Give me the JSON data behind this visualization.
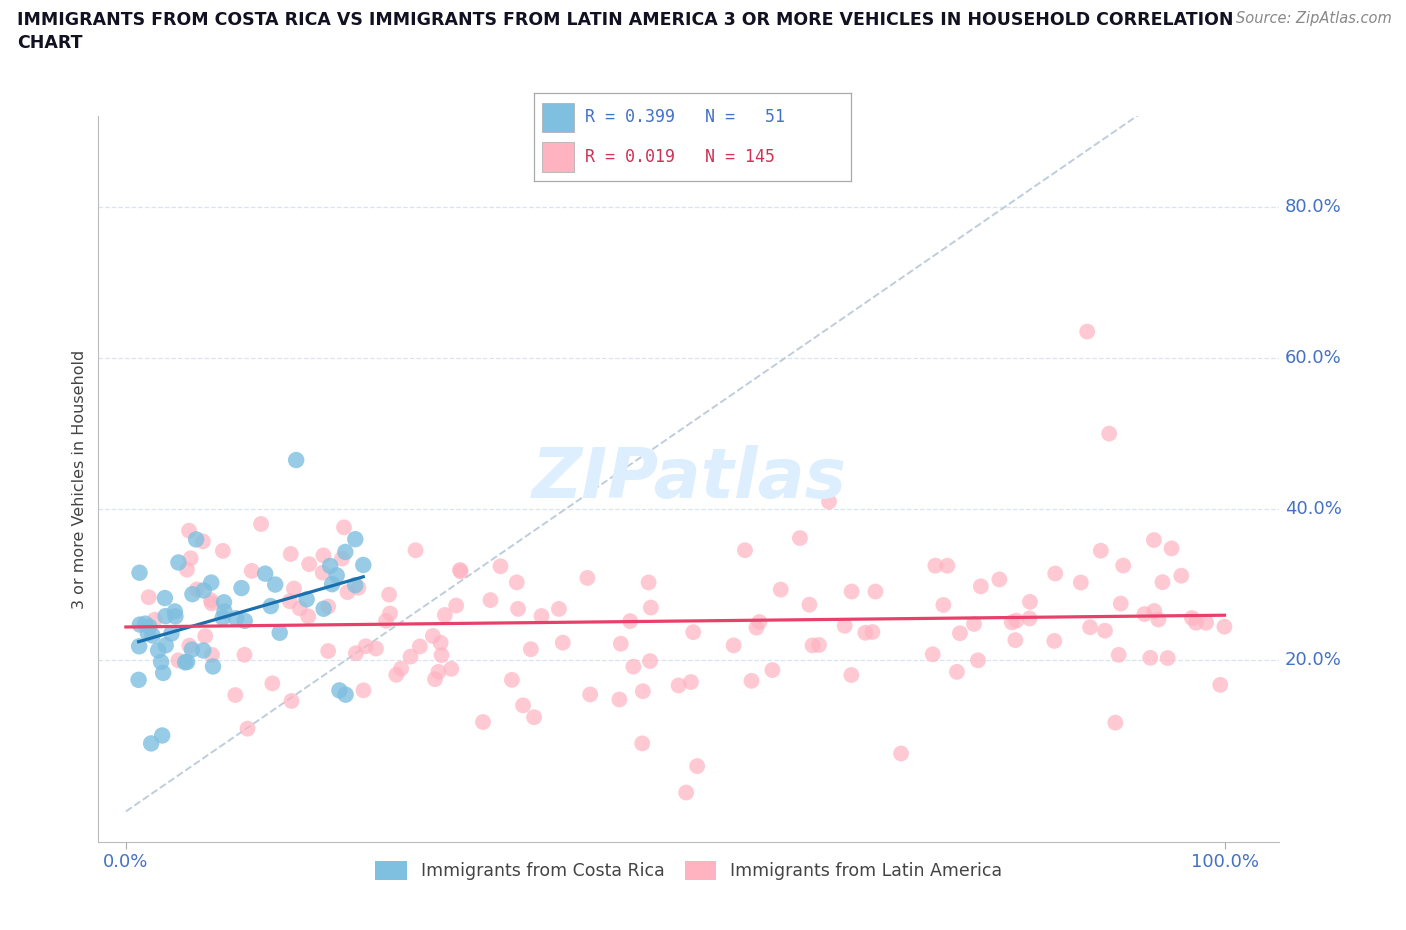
{
  "title_line1": "IMMIGRANTS FROM COSTA RICA VS IMMIGRANTS FROM LATIN AMERICA 3 OR MORE VEHICLES IN HOUSEHOLD CORRELATION",
  "title_line2": "CHART",
  "source": "Source: ZipAtlas.com",
  "ylabel": "3 or more Vehicles in Household",
  "costa_rica_color": "#7fbfdf",
  "latin_america_color": "#ffb3c1",
  "trend_costa_rica_color": "#1a6faf",
  "trend_latin_america_color": "#e8406a",
  "diagonal_color": "#b8c8d8",
  "background_color": "#ffffff",
  "grid_color": "#d8e4f0",
  "watermark_color": "#ddeeff",
  "ytick_vals": [
    0.2,
    0.4,
    0.6,
    0.8
  ],
  "ytick_labels": [
    "20.0%",
    "40.0%",
    "60.0%",
    "80.0%"
  ],
  "seed": 17,
  "n_costa_rica": 51,
  "n_latin_america": 145
}
